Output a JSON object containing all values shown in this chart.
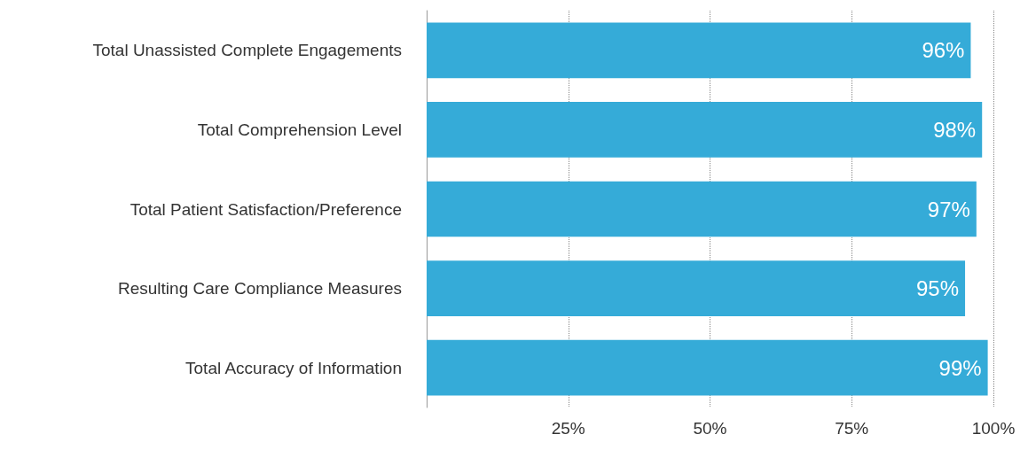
{
  "chart_data": {
    "type": "bar",
    "orientation": "horizontal",
    "categories": [
      "Total Unassisted Complete Engagements",
      "Total Comprehension Level",
      "Total Patient Satisfaction/Preference",
      "Resulting Care Compliance Measures",
      "Total Accuracy of Information"
    ],
    "values": [
      96,
      98,
      97,
      95,
      99
    ],
    "value_labels": [
      "96%",
      "98%",
      "97%",
      "95%",
      "99%"
    ],
    "color": "#35abd8",
    "xlim": [
      0,
      100
    ],
    "xticks": [
      {
        "value": 25,
        "label": "25%"
      },
      {
        "value": 50,
        "label": "50%"
      },
      {
        "value": 75,
        "label": "75%"
      },
      {
        "value": 100,
        "label": "100%"
      }
    ],
    "grid": "x"
  }
}
